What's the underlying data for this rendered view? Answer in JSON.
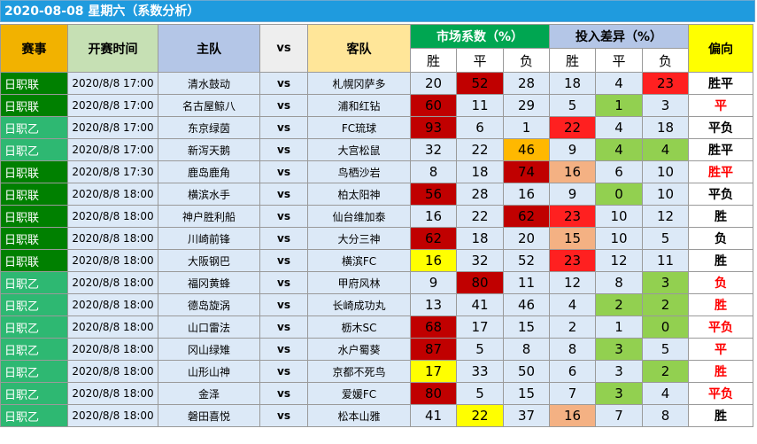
{
  "title": "2020-08-08 星期六（系数分析）",
  "colors": {
    "title_bg": "#1f9bde",
    "header_league": "#f2b200",
    "header_time": "#c6e0b4",
    "header_home": "#b4c6e7",
    "header_vs": "#eeeeee",
    "header_away": "#ffe699",
    "header_market": "#00a651",
    "header_diff": "#b4c6e7",
    "header_dir": "#ffff00",
    "cell_bg": "#dce9f7",
    "j1": "#008000",
    "j2": "#2eb872",
    "red": "#c00000",
    "orange": "#ffb800",
    "yellow": "#ffff00",
    "bright_red": "#ff2020",
    "salmon": "#f4b183",
    "green": "#92d050",
    "dir_red": "#ff0000",
    "dir_black": "#000000"
  },
  "headers": {
    "league": "赛事",
    "time": "开赛时间",
    "home": "主队",
    "vs": "vs",
    "away": "客队",
    "market": "市场系数（%）",
    "diff": "投入差异（%）",
    "direction": "偏向",
    "win": "胜",
    "draw": "平",
    "lose": "负"
  },
  "rows": [
    {
      "league": "日职联",
      "lc": "j1",
      "time": "2020/8/8 17:00",
      "home": "清水鼓动",
      "vs": "vs",
      "away": "札幌冈萨多",
      "m": [
        20,
        52,
        28
      ],
      "mc": [
        "",
        "red",
        ""
      ],
      "d": [
        18,
        4,
        23
      ],
      "dc": [
        "",
        "",
        "bright_red"
      ],
      "dir": "胜平",
      "dirc": "dir_black"
    },
    {
      "league": "日职联",
      "lc": "j1",
      "time": "2020/8/8 17:00",
      "home": "名古屋鲸八",
      "vs": "vs",
      "away": "浦和红钻",
      "m": [
        60,
        11,
        29
      ],
      "mc": [
        "red",
        "",
        ""
      ],
      "d": [
        5,
        1,
        3
      ],
      "dc": [
        "",
        "green",
        ""
      ],
      "dir": "平",
      "dirc": "dir_red"
    },
    {
      "league": "日职乙",
      "lc": "j2",
      "time": "2020/8/8 17:00",
      "home": "东京绿茵",
      "vs": "vs",
      "away": "FC琉球",
      "m": [
        93,
        6,
        1
      ],
      "mc": [
        "red",
        "",
        ""
      ],
      "d": [
        22,
        4,
        18
      ],
      "dc": [
        "bright_red",
        "",
        ""
      ],
      "dir": "平负",
      "dirc": "dir_black"
    },
    {
      "league": "日职乙",
      "lc": "j2",
      "time": "2020/8/8 17:00",
      "home": "新泻天鹅",
      "vs": "vs",
      "away": "大宫松鼠",
      "m": [
        32,
        22,
        46
      ],
      "mc": [
        "",
        "",
        "orange"
      ],
      "d": [
        9,
        4,
        4
      ],
      "dc": [
        "",
        "green",
        "green"
      ],
      "dir": "胜平",
      "dirc": "dir_black"
    },
    {
      "league": "日职联",
      "lc": "j1",
      "time": "2020/8/8 17:30",
      "home": "鹿岛鹿角",
      "vs": "vs",
      "away": "鸟栖沙岩",
      "m": [
        8,
        18,
        74
      ],
      "mc": [
        "",
        "",
        "red"
      ],
      "d": [
        16,
        6,
        10
      ],
      "dc": [
        "salmon",
        "",
        ""
      ],
      "dir": "胜平",
      "dirc": "dir_red"
    },
    {
      "league": "日职联",
      "lc": "j1",
      "time": "2020/8/8 18:00",
      "home": "横滨水手",
      "vs": "vs",
      "away": "柏太阳神",
      "m": [
        56,
        28,
        16
      ],
      "mc": [
        "red",
        "",
        ""
      ],
      "d": [
        9,
        0,
        10
      ],
      "dc": [
        "",
        "green",
        ""
      ],
      "dir": "平负",
      "dirc": "dir_black"
    },
    {
      "league": "日职联",
      "lc": "j1",
      "time": "2020/8/8 18:00",
      "home": "神户胜利船",
      "vs": "vs",
      "away": "仙台维加泰",
      "m": [
        16,
        22,
        62
      ],
      "mc": [
        "",
        "",
        "red"
      ],
      "d": [
        23,
        10,
        12
      ],
      "dc": [
        "bright_red",
        "",
        ""
      ],
      "dir": "胜",
      "dirc": "dir_black"
    },
    {
      "league": "日职联",
      "lc": "j1",
      "time": "2020/8/8 18:00",
      "home": "川崎前锋",
      "vs": "vs",
      "away": "大分三神",
      "m": [
        62,
        18,
        20
      ],
      "mc": [
        "red",
        "",
        ""
      ],
      "d": [
        15,
        10,
        5
      ],
      "dc": [
        "salmon",
        "",
        ""
      ],
      "dir": "负",
      "dirc": "dir_black"
    },
    {
      "league": "日职联",
      "lc": "j1",
      "time": "2020/8/8 18:00",
      "home": "大阪钢巴",
      "vs": "vs",
      "away": "横滨FC",
      "m": [
        16,
        32,
        52
      ],
      "mc": [
        "yellow",
        "",
        ""
      ],
      "d": [
        23,
        12,
        11
      ],
      "dc": [
        "bright_red",
        "",
        ""
      ],
      "dir": "胜",
      "dirc": "dir_black"
    },
    {
      "league": "日职乙",
      "lc": "j2",
      "time": "2020/8/8 18:00",
      "home": "福冈黄蜂",
      "vs": "vs",
      "away": "甲府风林",
      "m": [
        9,
        80,
        11
      ],
      "mc": [
        "",
        "red",
        ""
      ],
      "d": [
        12,
        8,
        3
      ],
      "dc": [
        "",
        "",
        "green"
      ],
      "dir": "负",
      "dirc": "dir_red"
    },
    {
      "league": "日职乙",
      "lc": "j2",
      "time": "2020/8/8 18:00",
      "home": "德岛旋涡",
      "vs": "vs",
      "away": "长崎成功丸",
      "m": [
        13,
        41,
        46
      ],
      "mc": [
        "",
        "",
        ""
      ],
      "d": [
        4,
        2,
        2
      ],
      "dc": [
        "",
        "green",
        "green"
      ],
      "dir": "胜",
      "dirc": "dir_red"
    },
    {
      "league": "日职乙",
      "lc": "j2",
      "time": "2020/8/8 18:00",
      "home": "山口雷法",
      "vs": "vs",
      "away": "枥木SC",
      "m": [
        68,
        17,
        15
      ],
      "mc": [
        "red",
        "",
        ""
      ],
      "d": [
        2,
        1,
        0
      ],
      "dc": [
        "",
        "",
        "green"
      ],
      "dir": "平负",
      "dirc": "dir_red"
    },
    {
      "league": "日职乙",
      "lc": "j2",
      "time": "2020/8/8 18:00",
      "home": "冈山绿雉",
      "vs": "vs",
      "away": "水户蜀葵",
      "m": [
        87,
        5,
        8
      ],
      "mc": [
        "red",
        "",
        ""
      ],
      "d": [
        8,
        3,
        5
      ],
      "dc": [
        "",
        "green",
        ""
      ],
      "dir": "平",
      "dirc": "dir_red"
    },
    {
      "league": "日职乙",
      "lc": "j2",
      "time": "2020/8/8 18:00",
      "home": "山形山神",
      "vs": "vs",
      "away": "京都不死鸟",
      "m": [
        17,
        33,
        50
      ],
      "mc": [
        "yellow",
        "",
        ""
      ],
      "d": [
        6,
        3,
        2
      ],
      "dc": [
        "",
        "",
        "green"
      ],
      "dir": "胜",
      "dirc": "dir_red"
    },
    {
      "league": "日职乙",
      "lc": "j2",
      "time": "2020/8/8 18:00",
      "home": "金泽",
      "vs": "vs",
      "away": "爱媛FC",
      "m": [
        80,
        5,
        15
      ],
      "mc": [
        "red",
        "",
        ""
      ],
      "d": [
        7,
        3,
        4
      ],
      "dc": [
        "",
        "green",
        ""
      ],
      "dir": "平负",
      "dirc": "dir_red"
    },
    {
      "league": "日职乙",
      "lc": "j2",
      "time": "2020/8/8 18:00",
      "home": "磐田喜悦",
      "vs": "vs",
      "away": "松本山雅",
      "m": [
        41,
        22,
        37
      ],
      "mc": [
        "",
        "yellow",
        ""
      ],
      "d": [
        16,
        7,
        8
      ],
      "dc": [
        "salmon",
        "",
        ""
      ],
      "dir": "胜",
      "dirc": "dir_black"
    }
  ]
}
